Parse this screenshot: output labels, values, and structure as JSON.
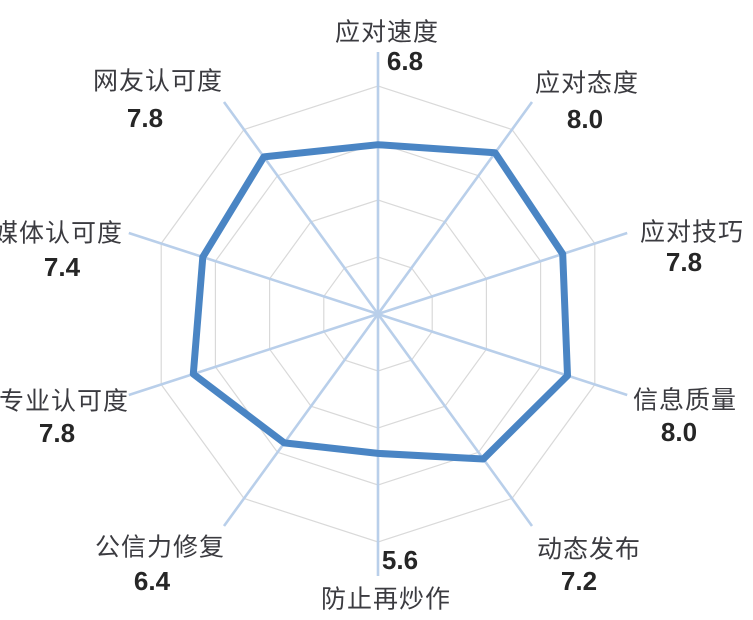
{
  "chart_data": {
    "type": "radar",
    "categories": [
      "应对速度",
      "应对态度",
      "应对技巧",
      "信息质量",
      "动态发布",
      "防止再炒作",
      "公信力修复",
      "专业认可度",
      "媒体认可度",
      "网友认可度"
    ],
    "values": [
      6.8,
      8.0,
      7.8,
      8.0,
      7.2,
      5.6,
      6.4,
      7.8,
      7.4,
      7.8
    ],
    "value_labels": [
      "6.8",
      "8.0",
      "7.8",
      "8.0",
      "7.2",
      "5.6",
      "6.4",
      "7.8",
      "7.4",
      "7.8"
    ],
    "axis_range": [
      0,
      10
    ],
    "grid_rings": 4,
    "grid": true,
    "legend": "none"
  },
  "colors": {
    "series_line": "#4A85C4",
    "axis_line": "#B9CFEA",
    "grid_line": "#D9D9D9",
    "category_label": "#3B3B40",
    "value_label": "#262626",
    "background": "#FFFFFF"
  }
}
